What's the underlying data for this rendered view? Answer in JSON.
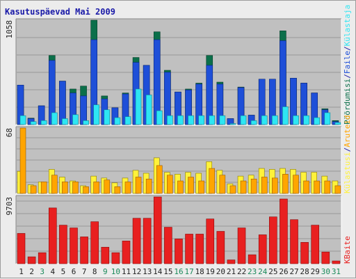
{
  "title": "Kasutuspäevad Mai 2009",
  "colors": {
    "background": "#ececec",
    "plot_bg": "#c0c0c0",
    "grid": "#999999",
    "visits": "#0b6f4a",
    "pages": "#1e4fd8",
    "hits": "#2ee6f3",
    "kb": "#e82020",
    "visitors": "#ffa500",
    "unique": "#fff23a",
    "weekday_label": "#222222",
    "weekend_label": "#1a8a5a",
    "separator": "#1a1aa8"
  },
  "legend": {
    "top": [
      {
        "text": "Pöördumisi",
        "color": "#0b6f4a"
      },
      {
        "text": "/",
        "color": "#1a1aa8"
      },
      {
        "text": "Faile",
        "color": "#1e4fd8"
      },
      {
        "text": "/",
        "color": "#1a1aa8"
      },
      {
        "text": "Külastaja",
        "color": "#2ee6f3"
      }
    ],
    "middle": [
      {
        "text": "Külastusi",
        "color": "#fff23a"
      },
      {
        "text": "/",
        "color": "#1a1aa8"
      },
      {
        "text": "Aruteid",
        "color": "#ffa500"
      }
    ],
    "bottom": [
      {
        "text": "KBaite",
        "color": "#e82020"
      }
    ]
  },
  "chart_data": [
    {
      "type": "bar",
      "max_label": "1058",
      "ylim": [
        0,
        1058
      ],
      "categories": [
        "1",
        "2",
        "3",
        "4",
        "5",
        "6",
        "7",
        "8",
        "9",
        "10",
        "11",
        "12",
        "13",
        "14",
        "15",
        "16",
        "17",
        "18",
        "19",
        "20",
        "21",
        "22",
        "23",
        "24",
        "25",
        "26",
        "27",
        "28",
        "29",
        "30",
        "31"
      ],
      "weekend": [
        false,
        false,
        true,
        false,
        false,
        false,
        false,
        false,
        true,
        true,
        false,
        false,
        false,
        false,
        false,
        true,
        true,
        false,
        false,
        false,
        false,
        false,
        true,
        true,
        false,
        false,
        false,
        false,
        false,
        true,
        true
      ],
      "series": [
        {
          "name": "Pöördumisi",
          "values": [
            400,
            65,
            190,
            700,
            440,
            360,
            390,
            1058,
            290,
            170,
            320,
            680,
            600,
            940,
            550,
            330,
            360,
            420,
            700,
            430,
            60,
            380,
            95,
            460,
            460,
            950,
            470,
            420,
            320,
            160,
            40
          ]
        },
        {
          "name": "Faile",
          "values": [
            400,
            60,
            190,
            650,
            440,
            320,
            290,
            860,
            260,
            170,
            310,
            630,
            600,
            860,
            530,
            330,
            350,
            410,
            600,
            410,
            60,
            375,
            95,
            460,
            460,
            850,
            470,
            420,
            320,
            150,
            30
          ]
        },
        {
          "name": "Külastaja",
          "values": [
            90,
            30,
            40,
            120,
            60,
            100,
            40,
            200,
            150,
            70,
            80,
            360,
            300,
            140,
            90,
            90,
            90,
            90,
            90,
            90,
            10,
            90,
            40,
            90,
            90,
            180,
            90,
            90,
            70,
            120,
            20
          ]
        }
      ]
    },
    {
      "type": "bar",
      "max_label": "68",
      "ylim": [
        0,
        68
      ],
      "categories": [
        "1",
        "2",
        "3",
        "4",
        "5",
        "6",
        "7",
        "8",
        "9",
        "10",
        "11",
        "12",
        "13",
        "14",
        "15",
        "16",
        "17",
        "18",
        "19",
        "20",
        "21",
        "22",
        "23",
        "24",
        "25",
        "26",
        "27",
        "28",
        "29",
        "30",
        "31"
      ],
      "series": [
        {
          "name": "Külastusi",
          "values": [
            23,
            9,
            12,
            25,
            17,
            13,
            8,
            18,
            16,
            11,
            16,
            24,
            21,
            37,
            22,
            20,
            22,
            21,
            33,
            24,
            10,
            18,
            19,
            26,
            25,
            26,
            25,
            22,
            22,
            18,
            13
          ]
        },
        {
          "name": "Aruteid",
          "values": [
            68,
            8,
            12,
            19,
            12,
            12,
            7,
            12,
            14,
            7,
            12,
            17,
            15,
            29,
            19,
            13,
            17,
            13,
            26,
            19,
            8,
            13,
            15,
            17,
            16,
            20,
            19,
            13,
            13,
            13,
            8
          ]
        }
      ]
    },
    {
      "type": "bar",
      "max_label": "9703",
      "ylim": [
        0,
        9703
      ],
      "categories": [
        "1",
        "2",
        "3",
        "4",
        "5",
        "6",
        "7",
        "8",
        "9",
        "10",
        "11",
        "12",
        "13",
        "14",
        "15",
        "16",
        "17",
        "18",
        "19",
        "20",
        "21",
        "22",
        "23",
        "24",
        "25",
        "26",
        "27",
        "28",
        "29",
        "30",
        "31"
      ],
      "series": [
        {
          "name": "KBaite",
          "values": [
            4400,
            1000,
            1600,
            8100,
            5600,
            5200,
            3900,
            6100,
            2400,
            1600,
            3300,
            6600,
            6600,
            9703,
            5300,
            3600,
            4300,
            4300,
            6500,
            4700,
            550,
            5200,
            1300,
            4200,
            6800,
            9400,
            6400,
            3100,
            5600,
            1700,
            400
          ]
        }
      ]
    }
  ]
}
